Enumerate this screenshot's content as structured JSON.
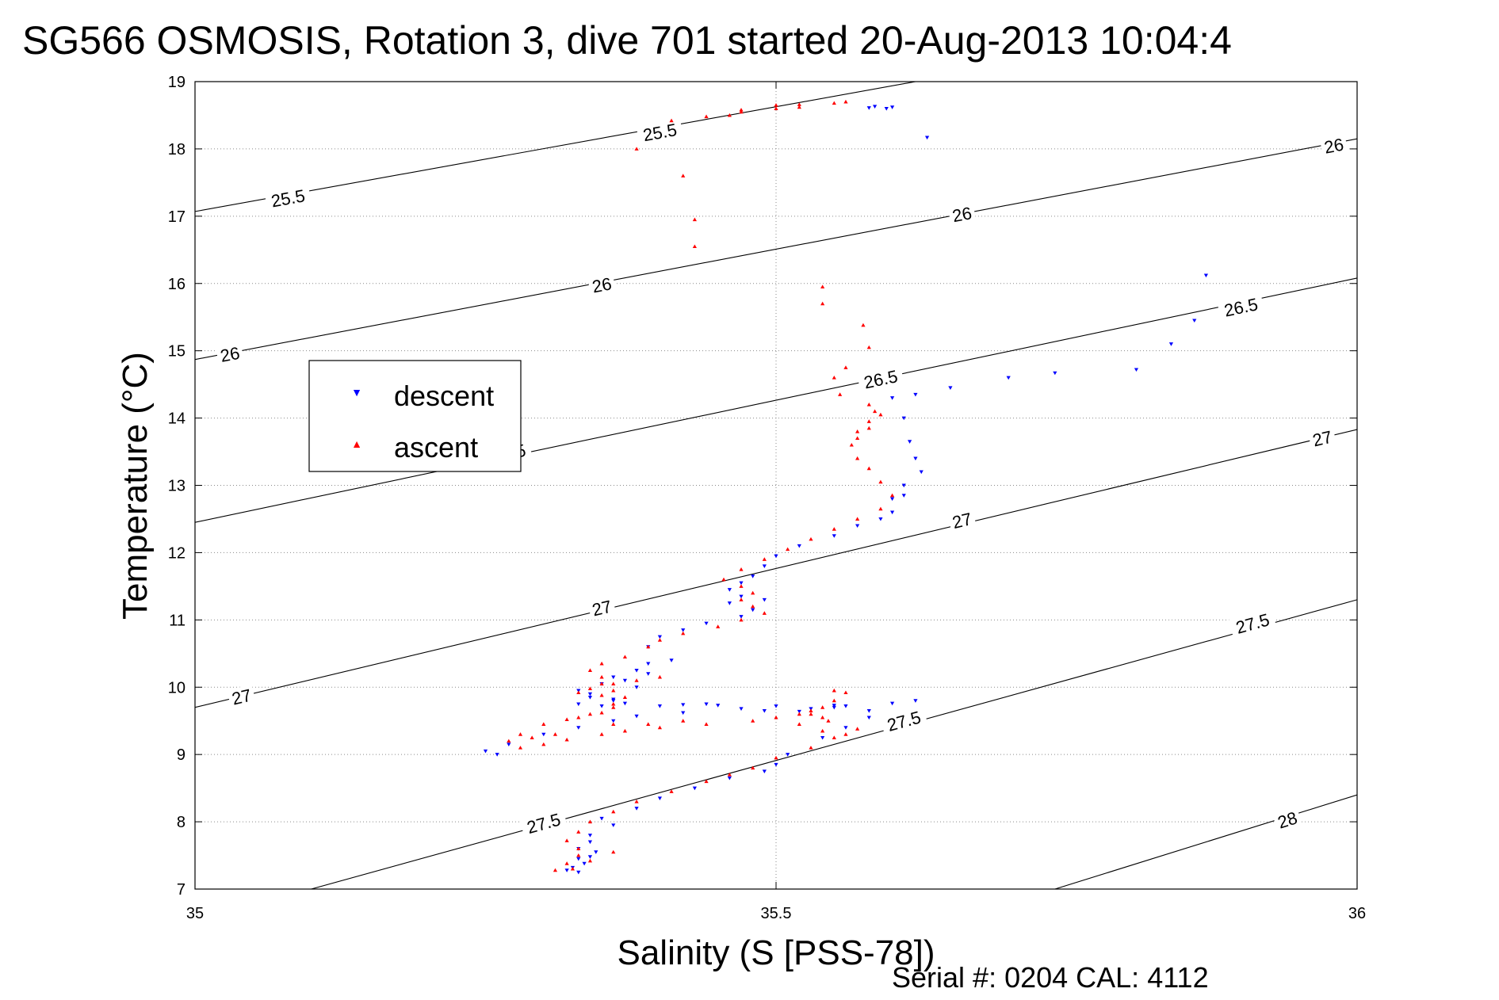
{
  "chart_data": {
    "type": "scatter",
    "title": "SG566 OSMOSIS, Rotation 3, dive 701 started 20-Aug-2013 10:04:4",
    "xlabel": "Salinity (S [PSS-78])",
    "ylabel": "Temperature (°C)",
    "footer": "Serial #: 0204  CAL: 4112",
    "xlim": [
      35,
      36
    ],
    "ylim": [
      7,
      19
    ],
    "x_ticks": [
      35,
      35.5,
      36
    ],
    "x_tick_labels": [
      "35",
      "35.5",
      "36"
    ],
    "y_ticks": [
      7,
      8,
      9,
      10,
      11,
      12,
      13,
      14,
      15,
      16,
      17,
      18,
      19
    ],
    "y_tick_labels": [
      "7",
      "8",
      "9",
      "10",
      "11",
      "12",
      "13",
      "14",
      "15",
      "16",
      "17",
      "18",
      "19"
    ],
    "grid": "dotted at x=35.5 and each y tick",
    "legend_position": "upper-left",
    "contours": [
      {
        "label": "25.5",
        "s0": 35.0,
        "t0": 17.07,
        "s1": 35.62,
        "t1": 19.0,
        "labels": [
          [
            35.08,
            17.27
          ],
          [
            35.4,
            18.25
          ]
        ]
      },
      {
        "label": "26",
        "s0": 35.0,
        "t0": 14.87,
        "s1": 36.0,
        "t1": 18.15,
        "labels": [
          [
            35.03,
            14.95
          ],
          [
            35.35,
            15.98
          ],
          [
            35.66,
            17.03
          ],
          [
            35.98,
            18.05
          ]
        ]
      },
      {
        "label": "26.5",
        "s0": 35.0,
        "t0": 12.45,
        "s1": 36.0,
        "t1": 16.08,
        "labels": [
          [
            35.27,
            13.48
          ],
          [
            35.59,
            14.58
          ],
          [
            35.9,
            15.65
          ]
        ]
      },
      {
        "label": "27",
        "s0": 35.0,
        "t0": 9.7,
        "s1": 36.0,
        "t1": 13.83,
        "labels": [
          [
            35.04,
            9.86
          ],
          [
            35.35,
            11.18
          ],
          [
            35.66,
            12.48
          ],
          [
            35.97,
            13.7
          ]
        ]
      },
      {
        "label": "27.5",
        "s0": 35.1,
        "t0": 7.0,
        "s1": 36.0,
        "t1": 11.3,
        "labels": [
          [
            35.3,
            7.98
          ],
          [
            35.61,
            9.5
          ],
          [
            35.91,
            10.95
          ]
        ]
      },
      {
        "label": "28",
        "s0": 35.74,
        "t0": 7.0,
        "s1": 36.0,
        "t1": 8.4,
        "labels": [
          [
            35.94,
            8.03
          ]
        ]
      }
    ],
    "series": [
      {
        "name": "descent",
        "color": "#0000ff",
        "marker": "triangle-down",
        "points": [
          [
            35.58,
            18.61
          ],
          [
            35.595,
            18.6
          ],
          [
            35.6,
            18.62
          ],
          [
            35.585,
            18.63
          ],
          [
            35.63,
            18.17
          ],
          [
            35.87,
            16.12
          ],
          [
            35.86,
            15.45
          ],
          [
            35.84,
            15.1
          ],
          [
            35.81,
            14.72
          ],
          [
            35.74,
            14.67
          ],
          [
            35.7,
            14.6
          ],
          [
            35.65,
            14.45
          ],
          [
            35.62,
            14.35
          ],
          [
            35.6,
            14.3
          ],
          [
            35.61,
            14.0
          ],
          [
            35.615,
            13.65
          ],
          [
            35.62,
            13.4
          ],
          [
            35.625,
            13.2
          ],
          [
            35.61,
            13.0
          ],
          [
            35.6,
            12.8
          ],
          [
            35.61,
            12.85
          ],
          [
            35.6,
            12.6
          ],
          [
            35.59,
            12.5
          ],
          [
            35.57,
            12.4
          ],
          [
            35.55,
            12.25
          ],
          [
            35.52,
            12.1
          ],
          [
            35.5,
            11.95
          ],
          [
            35.49,
            11.8
          ],
          [
            35.48,
            11.65
          ],
          [
            35.47,
            11.55
          ],
          [
            35.46,
            11.45
          ],
          [
            35.47,
            11.35
          ],
          [
            35.46,
            11.25
          ],
          [
            35.48,
            11.15
          ],
          [
            35.49,
            11.3
          ],
          [
            35.47,
            11.05
          ],
          [
            35.44,
            10.95
          ],
          [
            35.42,
            10.85
          ],
          [
            35.4,
            10.75
          ],
          [
            35.39,
            10.6
          ],
          [
            35.41,
            10.4
          ],
          [
            35.38,
            10.25
          ],
          [
            35.39,
            10.35
          ],
          [
            35.36,
            10.15
          ],
          [
            35.38,
            10.0
          ],
          [
            35.34,
            9.9
          ],
          [
            35.36,
            9.8
          ],
          [
            35.33,
            9.75
          ],
          [
            35.35,
            9.72
          ],
          [
            35.4,
            9.72
          ],
          [
            35.45,
            9.73
          ],
          [
            35.5,
            9.72
          ],
          [
            35.55,
            9.73
          ],
          [
            35.6,
            9.76
          ],
          [
            35.62,
            9.8
          ],
          [
            35.58,
            9.65
          ],
          [
            35.52,
            9.64
          ],
          [
            35.49,
            9.65
          ],
          [
            35.47,
            9.68
          ],
          [
            35.42,
            9.62
          ],
          [
            35.38,
            9.57
          ],
          [
            35.36,
            9.5
          ],
          [
            35.33,
            9.4
          ],
          [
            35.3,
            9.3
          ],
          [
            35.27,
            9.15
          ],
          [
            35.25,
            9.05
          ],
          [
            35.26,
            9.0
          ],
          [
            35.58,
            9.55
          ],
          [
            35.56,
            9.4
          ],
          [
            35.54,
            9.25
          ],
          [
            35.51,
            9.0
          ],
          [
            35.5,
            8.85
          ],
          [
            35.49,
            8.75
          ],
          [
            35.46,
            8.65
          ],
          [
            35.43,
            8.5
          ],
          [
            35.4,
            8.35
          ],
          [
            35.38,
            8.2
          ],
          [
            35.35,
            8.05
          ],
          [
            35.36,
            7.95
          ],
          [
            35.34,
            7.8
          ],
          [
            35.34,
            7.7
          ],
          [
            35.33,
            7.6
          ],
          [
            35.345,
            7.55
          ],
          [
            35.33,
            7.45
          ],
          [
            35.335,
            7.38
          ],
          [
            35.32,
            7.28
          ],
          [
            35.33,
            7.25
          ],
          [
            35.325,
            7.32
          ],
          [
            35.34,
            7.48
          ],
          [
            35.55,
            9.7
          ],
          [
            35.53,
            9.68
          ],
          [
            35.56,
            9.72
          ],
          [
            35.44,
            9.75
          ],
          [
            35.42,
            9.74
          ],
          [
            35.37,
            9.76
          ],
          [
            35.36,
            9.82
          ],
          [
            35.34,
            9.85
          ],
          [
            35.33,
            9.95
          ],
          [
            35.35,
            10.05
          ],
          [
            35.37,
            10.1
          ],
          [
            35.39,
            10.2
          ]
        ]
      },
      {
        "name": "ascent",
        "color": "#ff0000",
        "marker": "triangle-up",
        "points": [
          [
            35.56,
            18.7
          ],
          [
            35.55,
            18.68
          ],
          [
            35.52,
            18.66
          ],
          [
            35.5,
            18.65
          ],
          [
            35.47,
            18.55
          ],
          [
            35.44,
            18.48
          ],
          [
            35.38,
            18.0
          ],
          [
            35.42,
            17.6
          ],
          [
            35.43,
            16.95
          ],
          [
            35.43,
            16.55
          ],
          [
            35.54,
            15.95
          ],
          [
            35.54,
            15.7
          ],
          [
            35.575,
            15.38
          ],
          [
            35.58,
            15.05
          ],
          [
            35.56,
            14.75
          ],
          [
            35.55,
            14.6
          ],
          [
            35.555,
            14.35
          ],
          [
            35.58,
            14.2
          ],
          [
            35.59,
            14.05
          ],
          [
            35.58,
            13.85
          ],
          [
            35.57,
            13.7
          ],
          [
            35.565,
            13.6
          ],
          [
            35.57,
            13.4
          ],
          [
            35.58,
            13.25
          ],
          [
            35.59,
            13.05
          ],
          [
            35.6,
            12.85
          ],
          [
            35.59,
            12.65
          ],
          [
            35.57,
            12.5
          ],
          [
            35.55,
            12.35
          ],
          [
            35.53,
            12.2
          ],
          [
            35.51,
            12.05
          ],
          [
            35.49,
            11.9
          ],
          [
            35.47,
            11.75
          ],
          [
            35.455,
            11.6
          ],
          [
            35.47,
            11.5
          ],
          [
            35.48,
            11.4
          ],
          [
            35.47,
            11.3
          ],
          [
            35.48,
            11.2
          ],
          [
            35.49,
            11.1
          ],
          [
            35.47,
            11.0
          ],
          [
            35.45,
            10.9
          ],
          [
            35.42,
            10.8
          ],
          [
            35.4,
            10.7
          ],
          [
            35.39,
            10.6
          ],
          [
            35.37,
            10.45
          ],
          [
            35.35,
            10.35
          ],
          [
            35.34,
            10.25
          ],
          [
            35.35,
            10.15
          ],
          [
            35.36,
            10.05
          ],
          [
            35.34,
            9.98
          ],
          [
            35.33,
            9.92
          ],
          [
            35.35,
            9.88
          ],
          [
            35.36,
            9.75
          ],
          [
            35.34,
            9.6
          ],
          [
            35.32,
            9.52
          ],
          [
            35.3,
            9.45
          ],
          [
            35.28,
            9.3
          ],
          [
            35.27,
            9.2
          ],
          [
            35.28,
            9.1
          ],
          [
            35.3,
            9.15
          ],
          [
            35.32,
            9.22
          ],
          [
            35.35,
            9.3
          ],
          [
            35.37,
            9.35
          ],
          [
            35.4,
            9.4
          ],
          [
            35.44,
            9.45
          ],
          [
            35.48,
            9.5
          ],
          [
            35.5,
            9.55
          ],
          [
            35.52,
            9.6
          ],
          [
            35.53,
            9.65
          ],
          [
            35.54,
            9.7
          ],
          [
            35.55,
            9.8
          ],
          [
            35.56,
            9.92
          ],
          [
            35.55,
            9.95
          ],
          [
            35.53,
            9.6
          ],
          [
            35.52,
            9.45
          ],
          [
            35.54,
            9.35
          ],
          [
            35.55,
            9.25
          ],
          [
            35.53,
            9.1
          ],
          [
            35.5,
            8.95
          ],
          [
            35.48,
            8.8
          ],
          [
            35.46,
            8.7
          ],
          [
            35.44,
            8.6
          ],
          [
            35.41,
            8.45
          ],
          [
            35.38,
            8.3
          ],
          [
            35.36,
            8.15
          ],
          [
            35.34,
            8.0
          ],
          [
            35.33,
            7.85
          ],
          [
            35.32,
            7.72
          ],
          [
            35.33,
            7.6
          ],
          [
            35.33,
            7.5
          ],
          [
            35.32,
            7.38
          ],
          [
            35.31,
            7.28
          ],
          [
            35.325,
            7.3
          ],
          [
            35.34,
            7.42
          ],
          [
            35.36,
            7.55
          ],
          [
            35.37,
            9.85
          ],
          [
            35.36,
            9.95
          ],
          [
            35.35,
            10.05
          ],
          [
            35.38,
            10.1
          ],
          [
            35.4,
            10.15
          ],
          [
            35.36,
            9.7
          ],
          [
            35.35,
            9.62
          ],
          [
            35.33,
            9.55
          ],
          [
            35.36,
            9.45
          ],
          [
            35.29,
            9.25
          ],
          [
            35.31,
            9.3
          ],
          [
            35.39,
            9.45
          ],
          [
            35.42,
            9.5
          ],
          [
            35.545,
            9.5
          ],
          [
            35.54,
            9.55
          ],
          [
            35.57,
            9.38
          ],
          [
            35.56,
            9.3
          ],
          [
            35.58,
            13.95
          ],
          [
            35.57,
            13.8
          ],
          [
            35.585,
            14.1
          ],
          [
            35.5,
            18.6
          ],
          [
            35.46,
            18.5
          ],
          [
            35.41,
            18.42
          ],
          [
            35.47,
            18.58
          ],
          [
            35.52,
            18.62
          ]
        ]
      }
    ]
  }
}
